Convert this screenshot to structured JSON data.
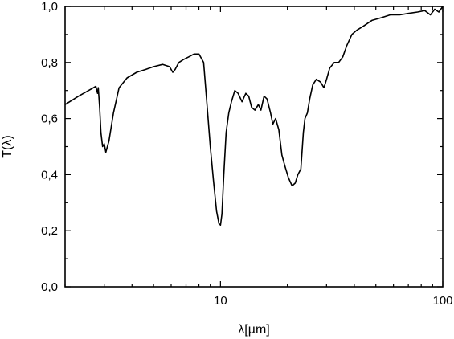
{
  "chart_data": {
    "type": "line",
    "title": "",
    "xlabel": "λ[µm]",
    "ylabel": "T(λ)",
    "xscale": "log",
    "xlim": [
      2,
      100
    ],
    "ylim": [
      0,
      1
    ],
    "grid": false,
    "legend": "none",
    "x_tick_labels": [
      {
        "value": 10,
        "label": "10"
      },
      {
        "value": 100,
        "label": "100"
      }
    ],
    "y_tick_labels": [
      {
        "value": 0.0,
        "label": "0,0"
      },
      {
        "value": 0.2,
        "label": "0,2"
      },
      {
        "value": 0.4,
        "label": "0,4"
      },
      {
        "value": 0.6,
        "label": "0,6"
      },
      {
        "value": 0.8,
        "label": "0,8"
      },
      {
        "value": 1.0,
        "label": "1,0"
      }
    ],
    "line_color": "#000000",
    "series": [
      {
        "x": [
          2.0,
          2.3,
          2.55,
          2.75,
          2.8,
          2.82,
          2.86,
          2.9,
          2.95,
          3.0,
          3.05,
          3.15,
          3.3,
          3.5,
          3.8,
          4.2,
          4.6,
          5.0,
          5.5,
          5.9,
          6.1,
          6.25,
          6.5,
          6.8,
          7.2,
          7.6,
          8.0,
          8.4,
          8.7,
          9.0,
          9.3,
          9.6,
          9.85,
          10.0,
          10.15,
          10.35,
          10.6,
          10.9,
          11.2,
          11.6,
          12.0,
          12.5,
          13.0,
          13.4,
          13.8,
          14.3,
          14.8,
          15.2,
          15.7,
          16.2,
          16.8,
          17.2,
          17.7,
          18.3,
          18.9,
          19.5,
          20.2,
          21.0,
          21.7,
          22.3,
          23.0,
          23.6,
          24.0,
          24.6,
          25.2,
          26.0,
          27.0,
          28.2,
          29.2,
          30.0,
          31.0,
          32.5,
          34.0,
          35.5,
          37.0,
          39.0,
          41.0,
          44.0,
          48.0,
          53.0,
          58.0,
          64.0,
          70.0,
          77.0,
          83.0,
          88.0,
          92.0,
          96.0,
          100.0
        ],
        "y": [
          0.65,
          0.68,
          0.7,
          0.715,
          0.69,
          0.71,
          0.64,
          0.55,
          0.5,
          0.51,
          0.48,
          0.52,
          0.62,
          0.71,
          0.745,
          0.765,
          0.775,
          0.785,
          0.793,
          0.785,
          0.765,
          0.775,
          0.8,
          0.81,
          0.82,
          0.83,
          0.83,
          0.8,
          0.65,
          0.5,
          0.38,
          0.27,
          0.225,
          0.22,
          0.26,
          0.4,
          0.55,
          0.62,
          0.66,
          0.7,
          0.69,
          0.66,
          0.69,
          0.68,
          0.64,
          0.63,
          0.65,
          0.63,
          0.68,
          0.67,
          0.62,
          0.58,
          0.6,
          0.56,
          0.47,
          0.43,
          0.39,
          0.36,
          0.37,
          0.4,
          0.42,
          0.55,
          0.6,
          0.62,
          0.67,
          0.72,
          0.74,
          0.73,
          0.71,
          0.74,
          0.78,
          0.8,
          0.8,
          0.82,
          0.86,
          0.9,
          0.915,
          0.93,
          0.95,
          0.96,
          0.97,
          0.97,
          0.975,
          0.98,
          0.985,
          0.97,
          0.99,
          0.98,
          1.0
        ]
      }
    ]
  }
}
